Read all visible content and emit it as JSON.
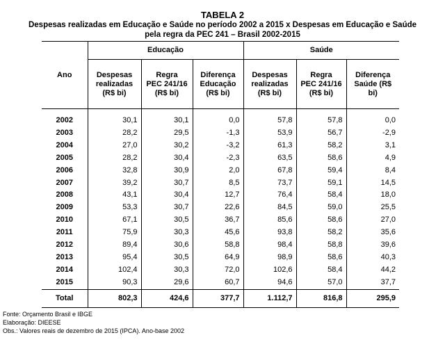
{
  "title": "TABELA 2",
  "subtitle_line1": "Despesas realizadas em Educação e Saúde no período 2002 a 2015 x Despesas em Educação e Saúde",
  "subtitle_line2": "pela regra da PEC 241 – Brasil 2002-2015",
  "headers": {
    "ano": "Ano",
    "group_educacao": "Educação",
    "group_saude": "Saúde",
    "edu_despesas": [
      "Despesas",
      "realizadas",
      "(R$ bi)"
    ],
    "edu_regra": [
      "Regra",
      "PEC 241/16",
      "(R$ bi)"
    ],
    "edu_diferenca": [
      "Diferença",
      "Educação",
      "(R$ bi)"
    ],
    "sau_despesas": [
      "Despesas",
      "realizadas",
      "(R$ bi)"
    ],
    "sau_regra": [
      "Regra",
      "PEC 241/16",
      "(R$ bi)"
    ],
    "sau_diferenca": [
      "Diferença",
      "Saúde (R$",
      "bi)"
    ]
  },
  "rows": [
    [
      "2002",
      "30,1",
      "30,1",
      "0,0",
      "57,8",
      "57,8",
      "0,0"
    ],
    [
      "2003",
      "28,2",
      "29,5",
      "-1,3",
      "53,9",
      "56,7",
      "-2,9"
    ],
    [
      "2004",
      "27,0",
      "30,2",
      "-3,2",
      "61,3",
      "58,2",
      "3,1"
    ],
    [
      "2005",
      "28,2",
      "30,4",
      "-2,3",
      "63,5",
      "58,6",
      "4,9"
    ],
    [
      "2006",
      "32,8",
      "30,9",
      "2,0",
      "67,8",
      "59,4",
      "8,4"
    ],
    [
      "2007",
      "39,2",
      "30,7",
      "8,5",
      "73,7",
      "59,1",
      "14,5"
    ],
    [
      "2008",
      "43,1",
      "30,4",
      "12,7",
      "76,4",
      "58,4",
      "18,0"
    ],
    [
      "2009",
      "53,3",
      "30,7",
      "22,6",
      "84,5",
      "59,0",
      "25,5"
    ],
    [
      "2010",
      "67,1",
      "30,5",
      "36,7",
      "85,6",
      "58,6",
      "27,0"
    ],
    [
      "2011",
      "75,9",
      "30,3",
      "45,6",
      "93,8",
      "58,2",
      "35,6"
    ],
    [
      "2012",
      "89,4",
      "30,6",
      "58,8",
      "98,4",
      "58,8",
      "39,6"
    ],
    [
      "2013",
      "95,4",
      "30,5",
      "64,9",
      "98,9",
      "58,6",
      "40,3"
    ],
    [
      "2014",
      "102,4",
      "30,3",
      "72,0",
      "102,6",
      "58,4",
      "44,2"
    ],
    [
      "2015",
      "90,3",
      "29,6",
      "60,7",
      "94,6",
      "57,0",
      "37,7"
    ]
  ],
  "total": [
    "Total",
    "802,3",
    "424,6",
    "377,7",
    "1.112,7",
    "816,8",
    "295,9"
  ],
  "notes": [
    "Fonte: Orçamento Brasil e IBGE",
    "Elaboração: DIEESE",
    "Obs.: Valores reais de dezembro de 2015 (IPCA). Ano-base 2002"
  ]
}
